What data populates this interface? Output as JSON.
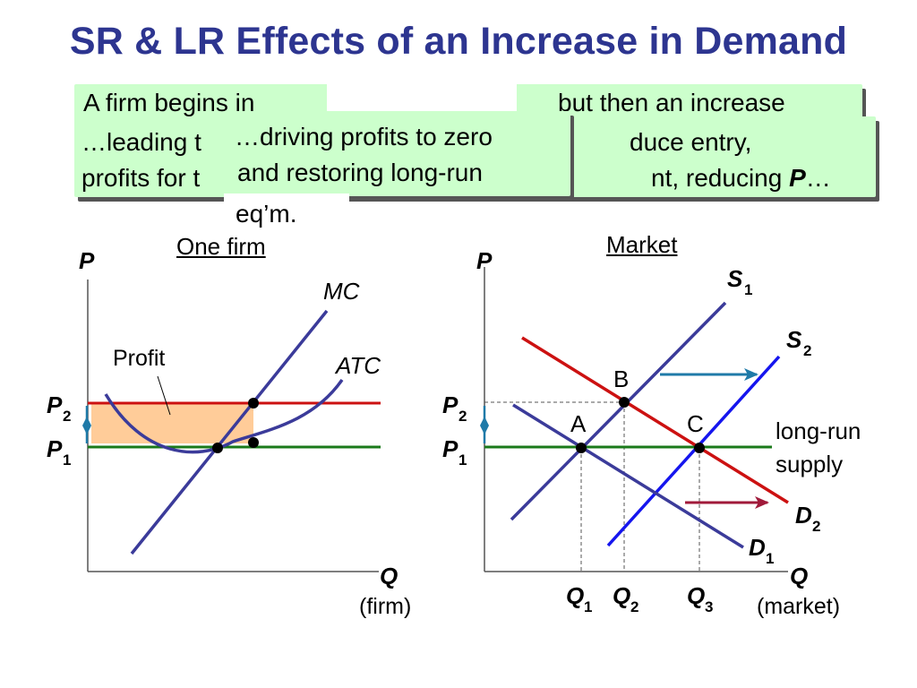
{
  "title": "SR & LR Effects of an Increase in Demand",
  "boxes": {
    "box1_left": "A firm begins in",
    "box1_right": "but then an increase",
    "box2_line1_left": "…leading t",
    "box2_line1_right": "duce entry,",
    "box2_line2_left": "profits for t",
    "box2_line2_right": "nt, reducing ",
    "box2_line2_var": "P",
    "box2_line2_end": "…",
    "box3_line1": "…driving profits to zero",
    "box3_line2": "and restoring long-run",
    "box3_line3": "eq’m."
  },
  "firm_graph": {
    "title": "One firm",
    "y_axis": "P",
    "x_axis": "Q",
    "x_axis_note": "(firm)",
    "mc_label": "MC",
    "atc_label": "ATC",
    "profit_label": "Profit",
    "p2_label": "P",
    "p2_sub": "2",
    "p1_label": "P",
    "p1_sub": "1"
  },
  "market_graph": {
    "title": "Market",
    "y_axis": "P",
    "x_axis": "Q",
    "x_axis_note": "(market)",
    "s1_label": "S",
    "s1_sub": "1",
    "s2_label": "S",
    "s2_sub": "2",
    "d1_label": "D",
    "d1_sub": "1",
    "d2_label": "D",
    "d2_sub": "2",
    "point_a": "A",
    "point_b": "B",
    "point_c": "C",
    "lr_supply_line1": "long-run",
    "lr_supply_line2": "supply",
    "p2_label": "P",
    "p2_sub": "2",
    "p1_label": "P",
    "p1_sub": "1",
    "q1_label": "Q",
    "q1_sub": "1",
    "q2_label": "Q",
    "q2_sub": "2",
    "q3_label": "Q",
    "q3_sub": "3"
  },
  "colors": {
    "title": "#2d3590",
    "box_bg": "#ccffcc",
    "curve_blue": "#3b3b9a",
    "supply_shift": "#1515ee",
    "demand_new": "#cc1111",
    "lr_price": "#1a7a1a",
    "profit_fill": "#ffcc99",
    "arrow_teal": "#1f7aa8",
    "arrow_maroon": "#a01a3a"
  }
}
